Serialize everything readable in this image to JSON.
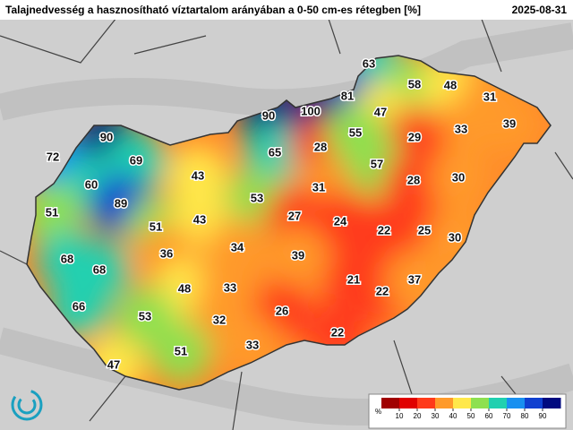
{
  "header": {
    "title": "Talajnedvesség a hasznosítható víztartalom arányában a 0-50 cm-es rétegben [%]",
    "date": "2025-08-31"
  },
  "legend": {
    "unit": "%",
    "range": [
      0,
      100
    ],
    "ticks": [
      10,
      20,
      30,
      40,
      50,
      60,
      70,
      80,
      90
    ],
    "colors": [
      "#a00000",
      "#e00000",
      "#ff3a1a",
      "#ff9a2a",
      "#ffe84a",
      "#8ee050",
      "#20d0b0",
      "#1890f0",
      "#1040d0",
      "#000a80"
    ]
  },
  "labels": [
    {
      "value": 63
    },
    {
      "value": 58
    },
    {
      "value": 48
    },
    {
      "value": 31
    },
    {
      "value": 81
    },
    {
      "value": 90
    },
    {
      "value": 100
    },
    {
      "value": 47
    },
    {
      "value": 39
    },
    {
      "value": 33
    },
    {
      "value": 29
    },
    {
      "value": 90
    },
    {
      "value": 65
    },
    {
      "value": 28
    },
    {
      "value": 55
    },
    {
      "value": 72
    },
    {
      "value": 69
    },
    {
      "value": 57
    },
    {
      "value": 43
    },
    {
      "value": 28
    },
    {
      "value": 30
    },
    {
      "value": 60
    },
    {
      "value": 31
    },
    {
      "value": 89
    },
    {
      "value": 53
    },
    {
      "value": 27
    },
    {
      "value": 24
    },
    {
      "value": 51
    },
    {
      "value": 51
    },
    {
      "value": 43
    },
    {
      "value": 22
    },
    {
      "value": 25
    },
    {
      "value": 30
    },
    {
      "value": 34
    },
    {
      "value": 36
    },
    {
      "value": 39
    },
    {
      "value": 68
    },
    {
      "value": 68
    },
    {
      "value": 48
    },
    {
      "value": 33
    },
    {
      "value": 21
    },
    {
      "value": 22
    },
    {
      "value": 37
    },
    {
      "value": 66
    },
    {
      "value": 53
    },
    {
      "value": 32
    },
    {
      "value": 26
    },
    {
      "value": 22
    },
    {
      "value": 33
    },
    {
      "value": 51
    },
    {
      "value": 47
    }
  ]
}
